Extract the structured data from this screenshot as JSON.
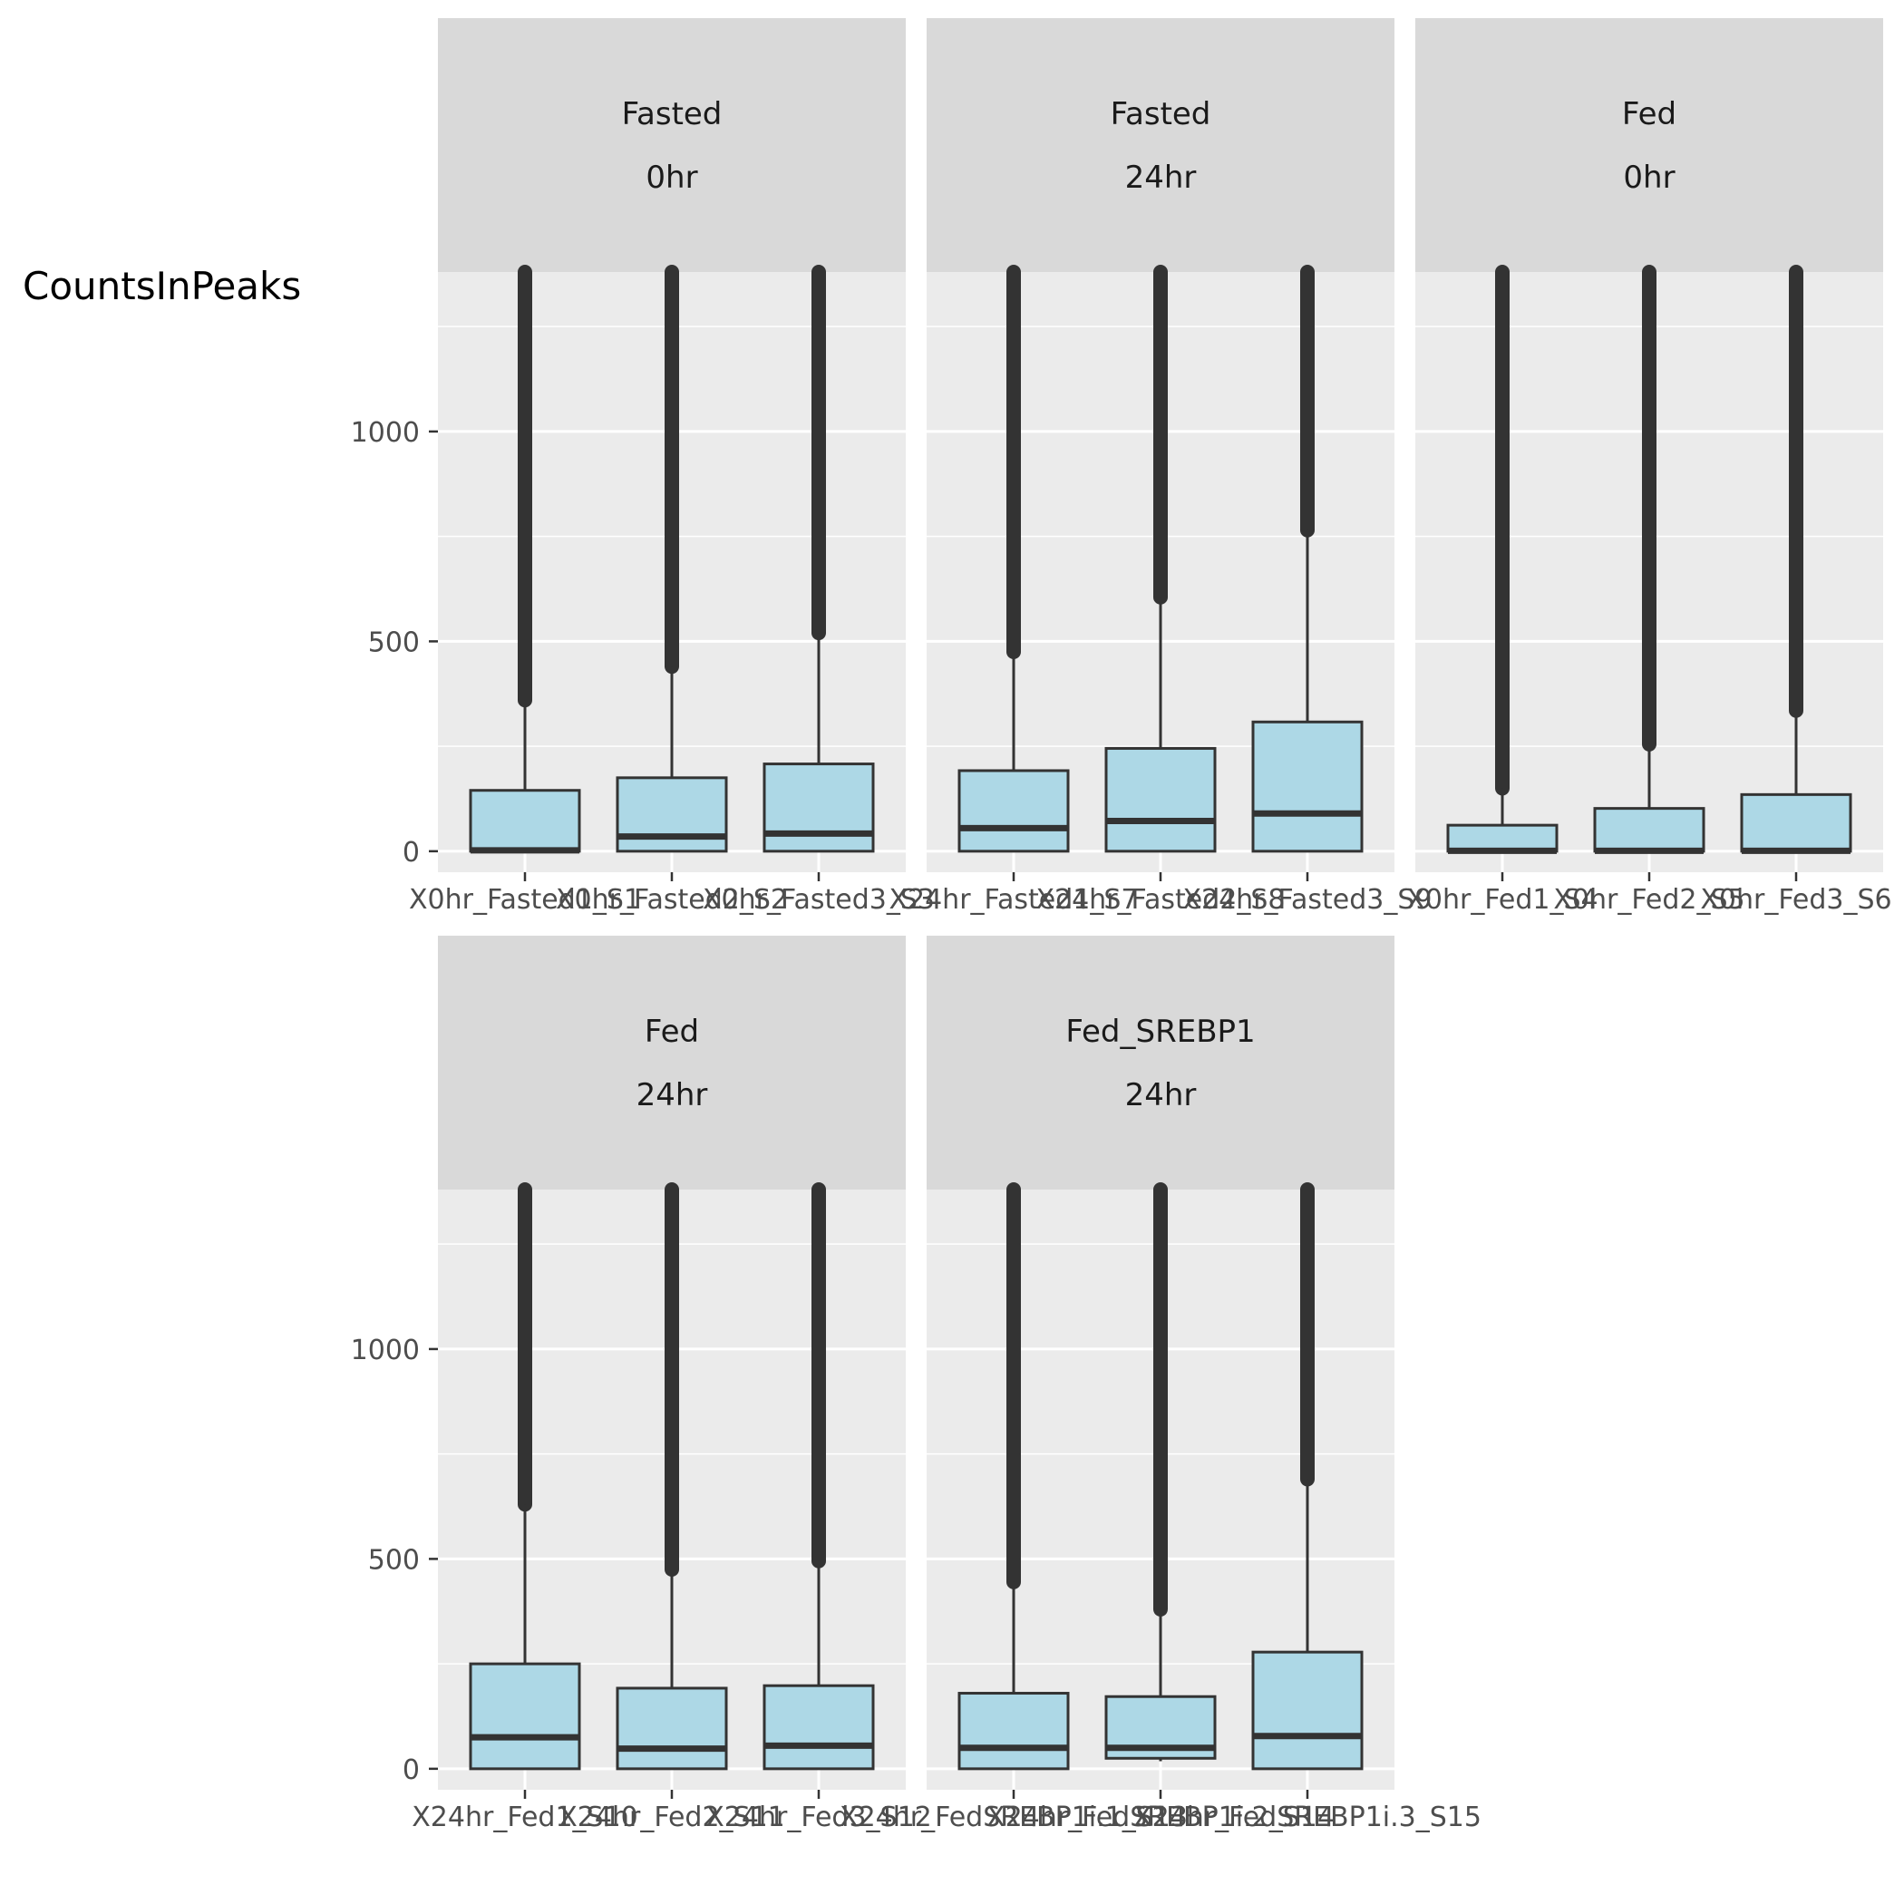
{
  "chart_data": {
    "type": "boxplot",
    "ylabel": "CountsInPeaks",
    "xlabel": "",
    "title": "",
    "ylim": [
      -50,
      1380
    ],
    "yticks": [
      0,
      500,
      1000
    ],
    "box_fill": "#add8e6",
    "line_color": "#333333",
    "panel_bg": "#ebebeb",
    "strip_bg": "#d9d9d9",
    "grid_color": "#ffffff",
    "panels": [
      {
        "strip": [
          "Fasted",
          "0hr"
        ],
        "samples": [
          {
            "label": "X0hr_Fasted1_S1",
            "q1": 0,
            "median": 2,
            "q3": 145,
            "whisker_low": 0,
            "whisker_high": 360
          },
          {
            "label": "X0hr_Fasted2_S2",
            "q1": 0,
            "median": 35,
            "q3": 175,
            "whisker_low": 0,
            "whisker_high": 440
          },
          {
            "label": "X0hr_Fasted3_S3",
            "q1": 0,
            "median": 42,
            "q3": 208,
            "whisker_low": 0,
            "whisker_high": 520
          }
        ]
      },
      {
        "strip": [
          "Fasted",
          "24hr"
        ],
        "samples": [
          {
            "label": "X24hr_Fasted1_S7",
            "q1": 0,
            "median": 55,
            "q3": 192,
            "whisker_low": 0,
            "whisker_high": 475
          },
          {
            "label": "X24hr_Fasted2_S8",
            "q1": 0,
            "median": 72,
            "q3": 245,
            "whisker_low": 0,
            "whisker_high": 605
          },
          {
            "label": "X24hr_Fasted3_S9",
            "q1": 0,
            "median": 90,
            "q3": 308,
            "whisker_low": 0,
            "whisker_high": 765
          }
        ]
      },
      {
        "strip": [
          "Fed",
          "0hr"
        ],
        "samples": [
          {
            "label": "X0hr_Fed1_S4",
            "q1": 0,
            "median": 1,
            "q3": 62,
            "whisker_low": 0,
            "whisker_high": 150
          },
          {
            "label": "X0hr_Fed2_S5",
            "q1": 0,
            "median": 1,
            "q3": 102,
            "whisker_low": 0,
            "whisker_high": 255
          },
          {
            "label": "X0hr_Fed3_S6",
            "q1": 0,
            "median": 1,
            "q3": 135,
            "whisker_low": 0,
            "whisker_high": 335
          }
        ]
      },
      {
        "strip": [
          "Fed",
          "24hr"
        ],
        "samples": [
          {
            "label": "X24hr_Fed1_S10",
            "q1": 0,
            "median": 75,
            "q3": 250,
            "whisker_low": 0,
            "whisker_high": 630
          },
          {
            "label": "X24hr_Fed2_S11",
            "q1": 0,
            "median": 48,
            "q3": 192,
            "whisker_low": 0,
            "whisker_high": 475
          },
          {
            "label": "X24hr_Fed3_S12",
            "q1": 0,
            "median": 55,
            "q3": 198,
            "whisker_low": 0,
            "whisker_high": 495
          }
        ]
      },
      {
        "strip": [
          "Fed_SREBP1",
          "24hr"
        ],
        "samples": [
          {
            "label": "X24hr_FedSREBP1i.1_S13",
            "q1": 0,
            "median": 50,
            "q3": 180,
            "whisker_low": 0,
            "whisker_high": 445
          },
          {
            "label": "X24hr_FedSREBP1i.2_S14",
            "q1": 25,
            "median": 50,
            "q3": 172,
            "whisker_low": 18,
            "whisker_high": 380
          },
          {
            "label": "X24hr_FedSREBP1i.3_S15",
            "q1": 0,
            "median": 78,
            "q3": 278,
            "whisker_low": 0,
            "whisker_high": 690
          }
        ]
      }
    ]
  }
}
